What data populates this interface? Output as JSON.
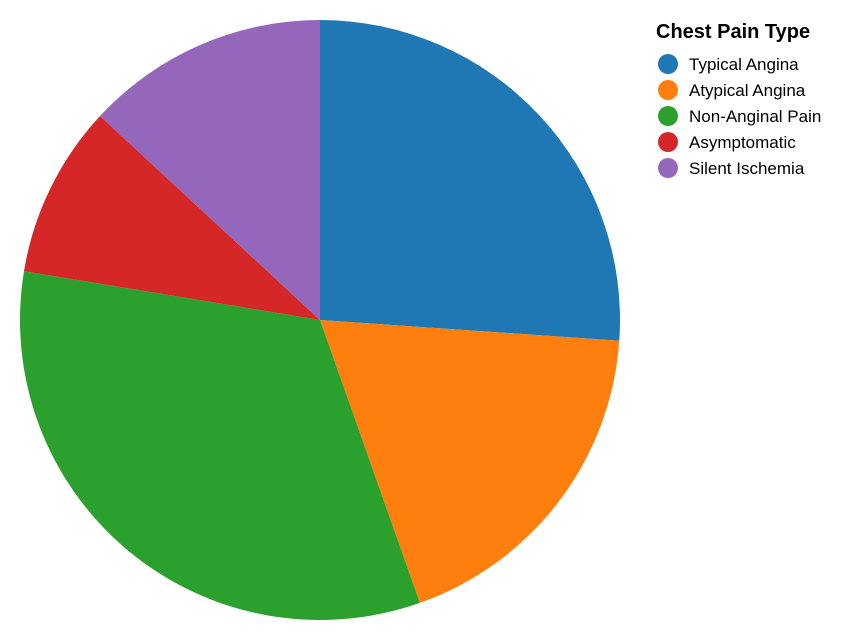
{
  "chart_data": {
    "type": "pie",
    "legend": {
      "title": "Chest Pain Type",
      "position": "top-right"
    },
    "slices": [
      {
        "label": "Typical Angina",
        "value": 26.1,
        "color": "#1f77b4"
      },
      {
        "label": "Atypical Angina",
        "value": 18.5,
        "color": "#ff7f0e"
      },
      {
        "label": "Non-Anginal Pain",
        "value": 33.0,
        "color": "#2ca02c"
      },
      {
        "label": "Asymptomatic",
        "value": 9.3,
        "color": "#d62728"
      },
      {
        "label": "Silent Ischemia",
        "value": 13.1,
        "color": "#9467bd"
      }
    ]
  }
}
